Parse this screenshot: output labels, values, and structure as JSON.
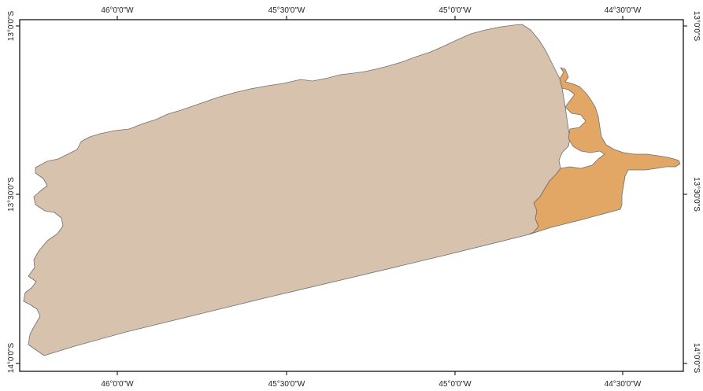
{
  "map": {
    "colors": {
      "background": "#ffffff",
      "frame": "#000000",
      "region_main": "#d7c2ad",
      "region_east": "#e2a765",
      "outline": "#6e6e6e"
    },
    "graticule": {
      "top_labels": [
        "46°0'0\"W",
        "45°30'0\"W",
        "45°0'0\"W",
        "44°30'0\"W"
      ],
      "bottom_labels": [
        "46°0'0\"W",
        "45°30'0\"W",
        "45°0'0\"W",
        "44°30'0\"W"
      ],
      "left_labels": [
        "13°0'0\"S",
        "13°30'0\"S",
        "14°0'0\"S"
      ],
      "right_labels": [
        "13°0'0\"S",
        "13°30'0\"S",
        "14°0'0\"S"
      ]
    }
  }
}
